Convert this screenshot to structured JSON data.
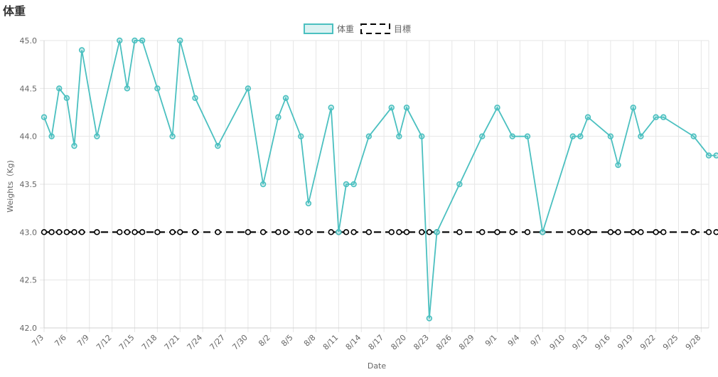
{
  "page": {
    "title": "体重"
  },
  "chart_data": {
    "type": "line",
    "title": "",
    "xlabel": "Date",
    "ylabel": "Weights（Kg)",
    "ylim": [
      42.0,
      45.0
    ],
    "yticks": [
      "45.0",
      "44.5",
      "44.0",
      "43.5",
      "43.0",
      "42.5",
      "42.0"
    ],
    "x_range": [
      "2023-07-03",
      "2023-09-29"
    ],
    "xticks": [
      "7/3",
      "7/6",
      "7/9",
      "7/12",
      "7/15",
      "7/18",
      "7/21",
      "7/24",
      "7/27",
      "7/30",
      "8/2",
      "8/5",
      "8/8",
      "8/11",
      "8/14",
      "8/17",
      "8/20",
      "8/23",
      "8/26",
      "8/29",
      "9/1",
      "9/4",
      "9/7",
      "9/10",
      "9/13",
      "9/16",
      "9/19",
      "9/22",
      "9/25",
      "9/28"
    ],
    "legend_position": "top-center",
    "grid": true,
    "series": [
      {
        "name": "体重",
        "color": "#4bc0c0",
        "dash": "solid",
        "points": [
          [
            "2023-07-03",
            44.2
          ],
          [
            "2023-07-04",
            44.0
          ],
          [
            "2023-07-05",
            44.5
          ],
          [
            "2023-07-06",
            44.4
          ],
          [
            "2023-07-07",
            43.9
          ],
          [
            "2023-07-08",
            44.9
          ],
          [
            "2023-07-10",
            44.0
          ],
          [
            "2023-07-13",
            45.0
          ],
          [
            "2023-07-14",
            44.5
          ],
          [
            "2023-07-15",
            45.0
          ],
          [
            "2023-07-16",
            45.0
          ],
          [
            "2023-07-18",
            44.5
          ],
          [
            "2023-07-20",
            44.0
          ],
          [
            "2023-07-21",
            45.0
          ],
          [
            "2023-07-23",
            44.4
          ],
          [
            "2023-07-26",
            43.9
          ],
          [
            "2023-07-30",
            44.5
          ],
          [
            "2023-08-01",
            43.5
          ],
          [
            "2023-08-03",
            44.2
          ],
          [
            "2023-08-04",
            44.4
          ],
          [
            "2023-08-06",
            44.0
          ],
          [
            "2023-08-07",
            43.3
          ],
          [
            "2023-08-10",
            44.3
          ],
          [
            "2023-08-11",
            43.0
          ],
          [
            "2023-08-12",
            43.5
          ],
          [
            "2023-08-13",
            43.5
          ],
          [
            "2023-08-15",
            44.0
          ],
          [
            "2023-08-18",
            44.3
          ],
          [
            "2023-08-19",
            44.0
          ],
          [
            "2023-08-20",
            44.3
          ],
          [
            "2023-08-22",
            44.0
          ],
          [
            "2023-08-23",
            42.1
          ],
          [
            "2023-08-24",
            43.0
          ],
          [
            "2023-08-27",
            43.5
          ],
          [
            "2023-08-30",
            44.0
          ],
          [
            "2023-09-01",
            44.3
          ],
          [
            "2023-09-03",
            44.0
          ],
          [
            "2023-09-05",
            44.0
          ],
          [
            "2023-09-07",
            43.0
          ],
          [
            "2023-09-11",
            44.0
          ],
          [
            "2023-09-12",
            44.0
          ],
          [
            "2023-09-13",
            44.2
          ],
          [
            "2023-09-16",
            44.0
          ],
          [
            "2023-09-17",
            43.7
          ],
          [
            "2023-09-19",
            44.3
          ],
          [
            "2023-09-20",
            44.0
          ],
          [
            "2023-09-22",
            44.2
          ],
          [
            "2023-09-23",
            44.2
          ],
          [
            "2023-09-27",
            44.0
          ],
          [
            "2023-09-29",
            43.8
          ],
          [
            "2023-09-30",
            43.8
          ]
        ]
      },
      {
        "name": "目標",
        "color": "#000000",
        "dash": "dashed",
        "points": [
          [
            "2023-07-03",
            43.0
          ],
          [
            "2023-07-04",
            43.0
          ],
          [
            "2023-07-05",
            43.0
          ],
          [
            "2023-07-06",
            43.0
          ],
          [
            "2023-07-07",
            43.0
          ],
          [
            "2023-07-08",
            43.0
          ],
          [
            "2023-07-10",
            43.0
          ],
          [
            "2023-07-13",
            43.0
          ],
          [
            "2023-07-14",
            43.0
          ],
          [
            "2023-07-15",
            43.0
          ],
          [
            "2023-07-16",
            43.0
          ],
          [
            "2023-07-18",
            43.0
          ],
          [
            "2023-07-20",
            43.0
          ],
          [
            "2023-07-21",
            43.0
          ],
          [
            "2023-07-23",
            43.0
          ],
          [
            "2023-07-26",
            43.0
          ],
          [
            "2023-07-30",
            43.0
          ],
          [
            "2023-08-01",
            43.0
          ],
          [
            "2023-08-03",
            43.0
          ],
          [
            "2023-08-04",
            43.0
          ],
          [
            "2023-08-06",
            43.0
          ],
          [
            "2023-08-07",
            43.0
          ],
          [
            "2023-08-10",
            43.0
          ],
          [
            "2023-08-11",
            43.0
          ],
          [
            "2023-08-12",
            43.0
          ],
          [
            "2023-08-13",
            43.0
          ],
          [
            "2023-08-15",
            43.0
          ],
          [
            "2023-08-18",
            43.0
          ],
          [
            "2023-08-19",
            43.0
          ],
          [
            "2023-08-20",
            43.0
          ],
          [
            "2023-08-22",
            43.0
          ],
          [
            "2023-08-23",
            43.0
          ],
          [
            "2023-08-24",
            43.0
          ],
          [
            "2023-08-27",
            43.0
          ],
          [
            "2023-08-30",
            43.0
          ],
          [
            "2023-09-01",
            43.0
          ],
          [
            "2023-09-03",
            43.0
          ],
          [
            "2023-09-05",
            43.0
          ],
          [
            "2023-09-07",
            43.0
          ],
          [
            "2023-09-11",
            43.0
          ],
          [
            "2023-09-12",
            43.0
          ],
          [
            "2023-09-13",
            43.0
          ],
          [
            "2023-09-16",
            43.0
          ],
          [
            "2023-09-17",
            43.0
          ],
          [
            "2023-09-19",
            43.0
          ],
          [
            "2023-09-20",
            43.0
          ],
          [
            "2023-09-22",
            43.0
          ],
          [
            "2023-09-23",
            43.0
          ],
          [
            "2023-09-27",
            43.0
          ],
          [
            "2023-09-29",
            43.0
          ],
          [
            "2023-09-30",
            43.0
          ]
        ]
      }
    ]
  }
}
